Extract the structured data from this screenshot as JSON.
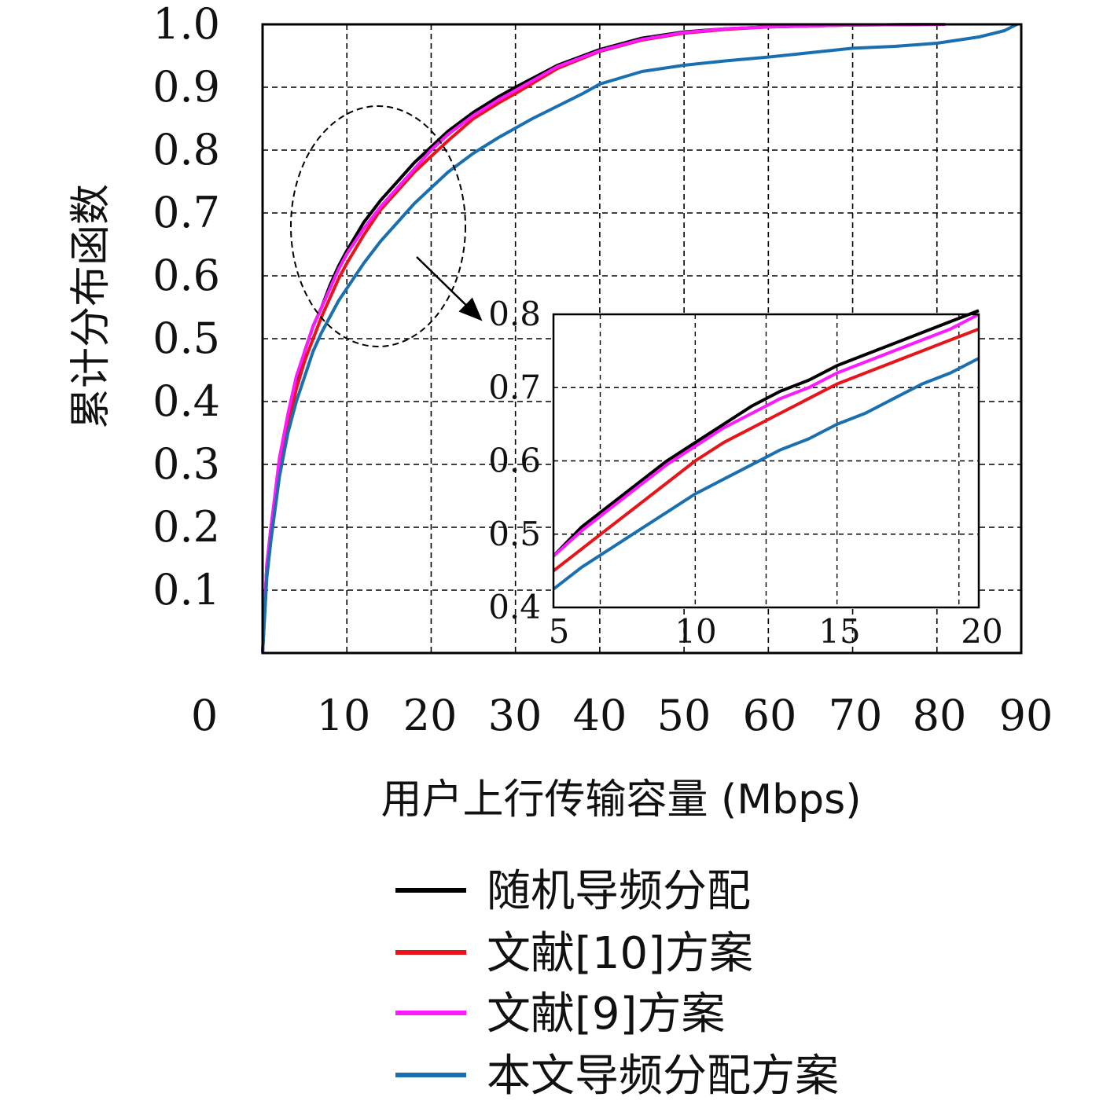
{
  "chart_data": [
    {
      "type": "line",
      "title": "",
      "xlabel": "用户上行传输容量 (Mbps)",
      "ylabel": "累计分布函数",
      "xlim": [
        0,
        90
      ],
      "ylim": [
        0,
        1.0
      ],
      "x_ticks": [
        "0",
        "10",
        "20",
        "30",
        "40",
        "50",
        "60",
        "70",
        "80",
        "90"
      ],
      "y_ticks": [
        "0.1",
        "0.2",
        "0.3",
        "0.4",
        "0.5",
        "0.6",
        "0.7",
        "0.8",
        "0.9",
        "1.0"
      ],
      "grid": true,
      "legend_position": "below",
      "series": [
        {
          "name": "随机导频分配",
          "color": "#000000",
          "points": [
            [
              0,
              0
            ],
            [
              0.5,
              0.14
            ],
            [
              1,
              0.2
            ],
            [
              2,
              0.3
            ],
            [
              3,
              0.37
            ],
            [
              4,
              0.43
            ],
            [
              5,
              0.48
            ],
            [
              6,
              0.52
            ],
            [
              7,
              0.55
            ],
            [
              8,
              0.585
            ],
            [
              9,
              0.615
            ],
            [
              10,
              0.64
            ],
            [
              12,
              0.685
            ],
            [
              14,
              0.72
            ],
            [
              16,
              0.75
            ],
            [
              18,
              0.78
            ],
            [
              20,
              0.805
            ],
            [
              22,
              0.83
            ],
            [
              25,
              0.86
            ],
            [
              28,
              0.885
            ],
            [
              30,
              0.9
            ],
            [
              35,
              0.935
            ],
            [
              40,
              0.96
            ],
            [
              45,
              0.978
            ],
            [
              50,
              0.988
            ],
            [
              55,
              0.993
            ],
            [
              60,
              0.996
            ],
            [
              70,
              0.999
            ],
            [
              80,
              1.0
            ],
            [
              81,
              1.0
            ]
          ]
        },
        {
          "name": "文献[10]方案",
          "color": "#e8141a",
          "points": [
            [
              0,
              0
            ],
            [
              0.5,
              0.13
            ],
            [
              1,
              0.19
            ],
            [
              2,
              0.29
            ],
            [
              3,
              0.36
            ],
            [
              4,
              0.42
            ],
            [
              5,
              0.465
            ],
            [
              6,
              0.5
            ],
            [
              7,
              0.535
            ],
            [
              8,
              0.565
            ],
            [
              9,
              0.595
            ],
            [
              10,
              0.62
            ],
            [
              12,
              0.665
            ],
            [
              14,
              0.705
            ],
            [
              16,
              0.735
            ],
            [
              18,
              0.765
            ],
            [
              20,
              0.79
            ],
            [
              22,
              0.815
            ],
            [
              25,
              0.85
            ],
            [
              28,
              0.875
            ],
            [
              30,
              0.89
            ],
            [
              35,
              0.93
            ],
            [
              40,
              0.957
            ],
            [
              45,
              0.975
            ],
            [
              50,
              0.986
            ],
            [
              55,
              0.992
            ],
            [
              60,
              0.996
            ],
            [
              70,
              0.999
            ],
            [
              80,
              1.0
            ],
            [
              81,
              1.0
            ]
          ]
        },
        {
          "name": "文献[9]方案",
          "color": "#ff19ff",
          "points": [
            [
              0,
              0
            ],
            [
              0.5,
              0.14
            ],
            [
              1,
              0.2
            ],
            [
              2,
              0.31
            ],
            [
              3,
              0.38
            ],
            [
              4,
              0.44
            ],
            [
              5,
              0.48
            ],
            [
              6,
              0.52
            ],
            [
              7,
              0.55
            ],
            [
              8,
              0.58
            ],
            [
              9,
              0.61
            ],
            [
              10,
              0.635
            ],
            [
              12,
              0.675
            ],
            [
              14,
              0.71
            ],
            [
              16,
              0.74
            ],
            [
              18,
              0.77
            ],
            [
              20,
              0.8
            ],
            [
              22,
              0.825
            ],
            [
              25,
              0.855
            ],
            [
              28,
              0.88
            ],
            [
              30,
              0.895
            ],
            [
              35,
              0.933
            ],
            [
              40,
              0.958
            ],
            [
              45,
              0.976
            ],
            [
              50,
              0.987
            ],
            [
              55,
              0.993
            ],
            [
              60,
              0.996
            ],
            [
              70,
              0.999
            ],
            [
              80,
              1.0
            ],
            [
              81,
              1.0
            ]
          ]
        },
        {
          "name": "本文导频分配方案",
          "color": "#1a6fb0",
          "points": [
            [
              0,
              0
            ],
            [
              0.5,
              0.12
            ],
            [
              1,
              0.18
            ],
            [
              2,
              0.28
            ],
            [
              3,
              0.35
            ],
            [
              4,
              0.4
            ],
            [
              5,
              0.44
            ],
            [
              6,
              0.48
            ],
            [
              7,
              0.51
            ],
            [
              8,
              0.535
            ],
            [
              9,
              0.56
            ],
            [
              10,
              0.58
            ],
            [
              12,
              0.62
            ],
            [
              14,
              0.655
            ],
            [
              16,
              0.685
            ],
            [
              18,
              0.715
            ],
            [
              20,
              0.74
            ],
            [
              22,
              0.765
            ],
            [
              25,
              0.795
            ],
            [
              28,
              0.82
            ],
            [
              30,
              0.835
            ],
            [
              32,
              0.85
            ],
            [
              35,
              0.87
            ],
            [
              38,
              0.89
            ],
            [
              40,
              0.905
            ],
            [
              45,
              0.925
            ],
            [
              50,
              0.935
            ],
            [
              55,
              0.942
            ],
            [
              60,
              0.948
            ],
            [
              65,
              0.955
            ],
            [
              70,
              0.962
            ],
            [
              75,
              0.965
            ],
            [
              80,
              0.97
            ],
            [
              85,
              0.98
            ],
            [
              88,
              0.99
            ],
            [
              89.5,
              1.0
            ]
          ]
        }
      ]
    },
    {
      "type": "line",
      "title": "",
      "xlabel": "",
      "ylabel": "",
      "xlim": [
        5,
        20
      ],
      "ylim": [
        0.4,
        0.8
      ],
      "x_ticks": [
        "5",
        "10",
        "15",
        "20"
      ],
      "y_ticks": [
        "0.4",
        "0.5",
        "0.6",
        "0.7",
        "0.8"
      ],
      "grid": true,
      "series": [
        {
          "color": "#000000",
          "points": [
            [
              5,
              0.47
            ],
            [
              6,
              0.51
            ],
            [
              7,
              0.54
            ],
            [
              8,
              0.57
            ],
            [
              9,
              0.6
            ],
            [
              10,
              0.625
            ],
            [
              11,
              0.65
            ],
            [
              12,
              0.675
            ],
            [
              13,
              0.695
            ],
            [
              14,
              0.71
            ],
            [
              15,
              0.73
            ],
            [
              16,
              0.745
            ],
            [
              17,
              0.76
            ],
            [
              18,
              0.775
            ],
            [
              19,
              0.79
            ],
            [
              20,
              0.805
            ]
          ]
        },
        {
          "color": "#e8141a",
          "points": [
            [
              5,
              0.45
            ],
            [
              6,
              0.48
            ],
            [
              7,
              0.51
            ],
            [
              8,
              0.54
            ],
            [
              9,
              0.57
            ],
            [
              10,
              0.6
            ],
            [
              11,
              0.625
            ],
            [
              12,
              0.645
            ],
            [
              13,
              0.665
            ],
            [
              14,
              0.685
            ],
            [
              15,
              0.705
            ],
            [
              16,
              0.72
            ],
            [
              17,
              0.735
            ],
            [
              18,
              0.75
            ],
            [
              19,
              0.765
            ],
            [
              20,
              0.78
            ]
          ]
        },
        {
          "color": "#ff19ff",
          "points": [
            [
              5,
              0.47
            ],
            [
              6,
              0.505
            ],
            [
              7,
              0.535
            ],
            [
              8,
              0.565
            ],
            [
              9,
              0.595
            ],
            [
              10,
              0.62
            ],
            [
              11,
              0.645
            ],
            [
              12,
              0.665
            ],
            [
              13,
              0.685
            ],
            [
              14,
              0.7
            ],
            [
              15,
              0.72
            ],
            [
              16,
              0.735
            ],
            [
              17,
              0.75
            ],
            [
              18,
              0.765
            ],
            [
              19,
              0.78
            ],
            [
              20,
              0.8
            ]
          ]
        },
        {
          "color": "#1a6fb0",
          "points": [
            [
              5,
              0.425
            ],
            [
              6,
              0.455
            ],
            [
              7,
              0.48
            ],
            [
              8,
              0.505
            ],
            [
              9,
              0.53
            ],
            [
              10,
              0.555
            ],
            [
              11,
              0.575
            ],
            [
              12,
              0.595
            ],
            [
              13,
              0.615
            ],
            [
              14,
              0.63
            ],
            [
              15,
              0.65
            ],
            [
              16,
              0.665
            ],
            [
              17,
              0.685
            ],
            [
              18,
              0.705
            ],
            [
              19,
              0.72
            ],
            [
              20,
              0.74
            ]
          ]
        }
      ]
    }
  ]
}
